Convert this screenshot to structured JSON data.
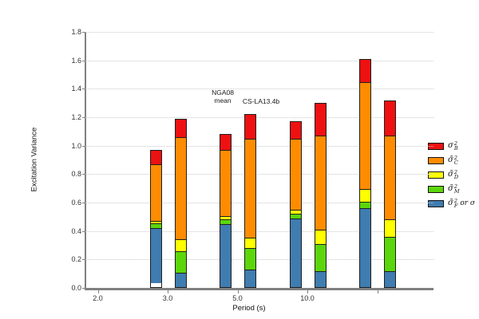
{
  "chart_data": {
    "type": "bar",
    "stacked": true,
    "title": "",
    "xlabel": "Period (s)",
    "ylabel": "Excitation Variance",
    "ylim": [
      0,
      1.8
    ],
    "ytick_labels": [
      "0.0",
      "0.2",
      "0.4",
      "0.6",
      "0.8",
      "1.0",
      "1.2",
      "1.4",
      "1.6",
      "1.8"
    ],
    "x_tick_labels": [
      "2.0",
      "3.0",
      "5.0",
      "10.0",
      ""
    ],
    "grid": "horizontal-dotted",
    "legend_position": "right-outside",
    "series_bottom_to_top": [
      "sigma2_F_or_sigma",
      "sigma2_M",
      "sigma2_D",
      "sigma2_C",
      "sigma2_B"
    ],
    "colors_bottom_to_top": [
      "#3f7cb0",
      "#5cd60c",
      "#ffff00",
      "#ff8c00",
      "#ee1111"
    ],
    "bar_variants": [
      "NGA08 mean",
      "CS-LA13.4b"
    ],
    "groups": [
      {
        "x_label": "3.0",
        "bars": [
          {
            "variant": "NGA08 mean",
            "segments_bottom_to_top": [
              0.41,
              0.03,
              0.01,
              0.42,
              0.1
            ],
            "total": 0.97
          },
          {
            "variant": "CS-LA13.4b",
            "segments_bottom_to_top": [
              0.1,
              0.15,
              0.08,
              0.73,
              0.13
            ],
            "total": 1.19
          }
        ]
      },
      {
        "x_label": "5.0",
        "bars": [
          {
            "variant": "NGA08 mean",
            "segments_bottom_to_top": [
              0.45,
              0.03,
              0.02,
              0.47,
              0.11
            ],
            "total": 1.08
          },
          {
            "variant": "CS-LA13.4b",
            "segments_bottom_to_top": [
              0.12,
              0.15,
              0.07,
              0.71,
              0.17
            ],
            "total": 1.22
          }
        ]
      },
      {
        "x_label": "10.0",
        "bars": [
          {
            "variant": "NGA08 mean",
            "segments_bottom_to_top": [
              0.49,
              0.03,
              0.02,
              0.51,
              0.12
            ],
            "total": 1.17
          },
          {
            "variant": "CS-LA13.4b",
            "segments_bottom_to_top": [
              0.11,
              0.19,
              0.1,
              0.67,
              0.23
            ],
            "total": 1.3
          }
        ]
      },
      {
        "x_label": "",
        "bars": [
          {
            "variant": "NGA08 mean",
            "segments_bottom_to_top": [
              0.56,
              0.04,
              0.09,
              0.76,
              0.16
            ],
            "total": 1.61
          },
          {
            "variant": "CS-LA13.4b",
            "segments_bottom_to_top": [
              0.11,
              0.24,
              0.12,
              0.6,
              0.25
            ],
            "total": 1.32
          }
        ]
      }
    ],
    "legend_top_to_bottom": [
      {
        "color": "#ee1111",
        "base": "σ",
        "sup": "2",
        "sub": "B",
        "extra": ""
      },
      {
        "color": "#ff8c00",
        "base": "σ̄",
        "sup": "2",
        "sub": "C",
        "extra": ""
      },
      {
        "color": "#ffff00",
        "base": "σ̄",
        "sup": "2",
        "sub": "D",
        "extra": ""
      },
      {
        "color": "#5cd60c",
        "base": "σ̄",
        "sup": "2",
        "sub": "M",
        "extra": ""
      },
      {
        "color": "#3f7cb0",
        "base": "σ̄",
        "sup": "2",
        "sub": "F",
        "extra": "or σ"
      }
    ],
    "annotations": {
      "nga08_line1": "NGA08",
      "nga08_line2": "mean",
      "cs_label": "CS-LA13.4b"
    }
  }
}
